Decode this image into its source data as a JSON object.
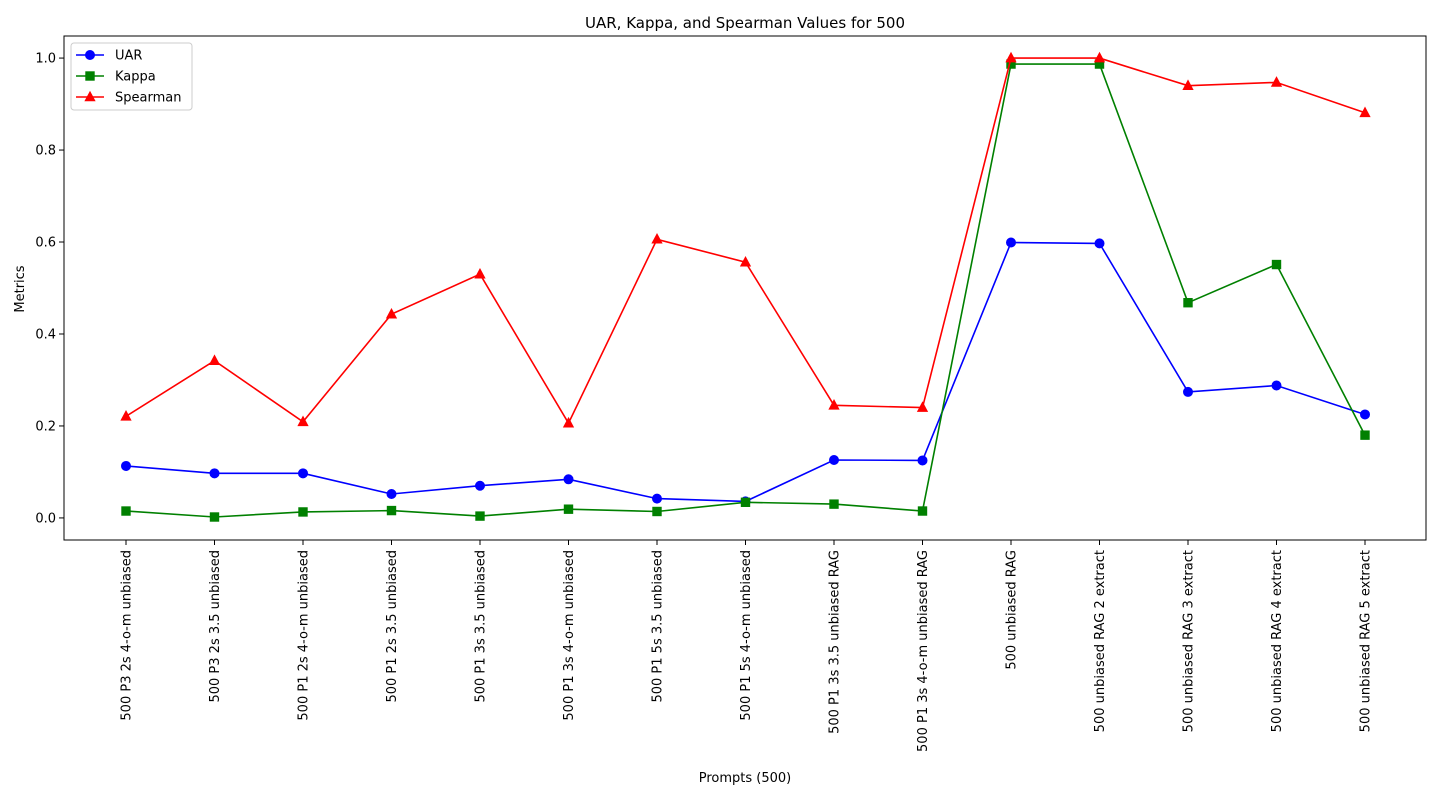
{
  "chart_data": {
    "type": "line",
    "title": "UAR, Kappa, and Spearman Values for 500",
    "xlabel": "Prompts (500)",
    "ylabel": "Metrics",
    "ylim": [
      -0.048,
      1.048
    ],
    "yticks": [
      0.0,
      0.2,
      0.4,
      0.6,
      0.8,
      1.0
    ],
    "ytick_labels": [
      "0.0",
      "0.2",
      "0.4",
      "0.6",
      "0.8",
      "1.0"
    ],
    "grid": false,
    "legend_position": "top-left",
    "categories": [
      "500 P3 2s 4-o-m unbiased",
      "500 P3 2s 3.5 unbiased",
      "500 P1 2s 4-o-m unbiased",
      "500 P1 2s 3.5 unbiased",
      "500 P1 3s 3.5 unbiased",
      "500 P1 3s 4-o-m unbiased",
      "500 P1 5s 3.5 unbiased",
      "500 P1 5s 4-o-m unbiased",
      "500 P1 3s 3.5 unbiased RAG",
      "500 P1 3s 4-o-m unbiased RAG",
      "500 unbiased RAG",
      "500 unbiased RAG 2 extract",
      "500 unbiased RAG 3 extract",
      "500 unbiased RAG 4 extract",
      "500 unbiased RAG 5 extract"
    ],
    "series": [
      {
        "name": "UAR",
        "color": "#0000ff",
        "marker": "circle",
        "values": [
          0.113,
          0.097,
          0.097,
          0.052,
          0.07,
          0.084,
          0.042,
          0.036,
          0.126,
          0.125,
          0.599,
          0.597,
          0.274,
          0.288,
          0.225
        ]
      },
      {
        "name": "Kappa",
        "color": "#008000",
        "marker": "square",
        "values": [
          0.015,
          0.002,
          0.013,
          0.016,
          0.004,
          0.019,
          0.014,
          0.034,
          0.03,
          0.015,
          0.987,
          0.987,
          0.468,
          0.551,
          0.18
        ]
      },
      {
        "name": "Spearman",
        "color": "#ff0000",
        "marker": "triangle",
        "values": [
          0.221,
          0.342,
          0.209,
          0.443,
          0.53,
          0.206,
          0.606,
          0.556,
          0.245,
          0.24,
          1.0,
          1.0,
          0.94,
          0.947,
          0.881
        ]
      }
    ]
  }
}
